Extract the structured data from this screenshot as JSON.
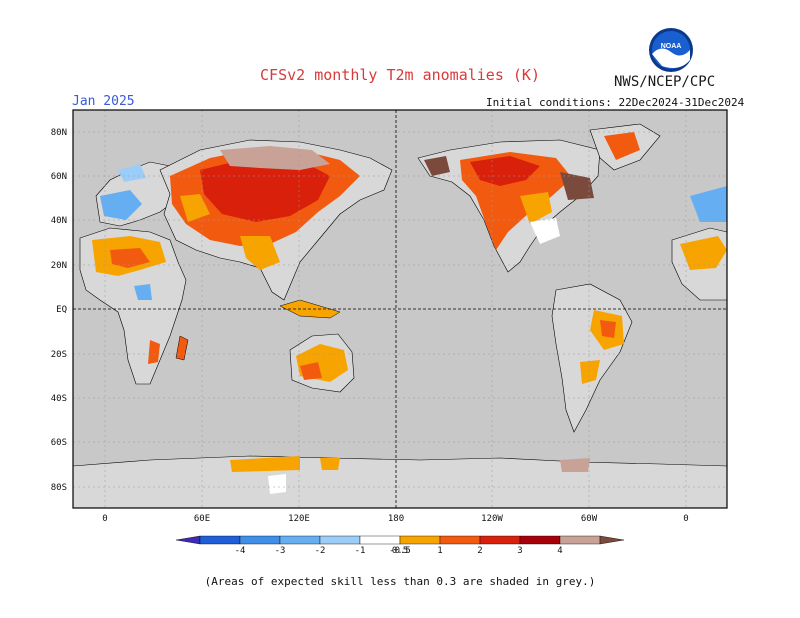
{
  "title": "CFSv2 monthly T2m anomalies (K)",
  "agency": "NWS/NCEP/CPC",
  "logo_text": "NOAA",
  "target_month": "Jan 2025",
  "initial_conditions": "Initial conditions: 22Dec2024-31Dec2024",
  "footnote": "(Areas of expected skill less than 0.3 are shaded in grey.)",
  "lat_ticks": [
    "80N",
    "60N",
    "40N",
    "20N",
    "EQ",
    "20S",
    "40S",
    "60S",
    "80S"
  ],
  "lon_ticks": [
    "0",
    "60E",
    "120E",
    "180",
    "120W",
    "60W",
    "0"
  ],
  "colorbar": {
    "labels": [
      "-4",
      "-3",
      "-2",
      "-1",
      "-0.5",
      "0.5",
      "1",
      "2",
      "3",
      "4"
    ],
    "colors": [
      "#3c2ab8",
      "#1e5ed8",
      "#3f8ee8",
      "#66aef2",
      "#9ccdf8",
      "#ffffff",
      "#f7a400",
      "#f25a10",
      "#d8200a",
      "#a8000a",
      "#c8a296",
      "#7a4a3c"
    ]
  },
  "colors": {
    "ocean": "#c8c8c8",
    "low_skill_land": "#c8c8c8",
    "title_red": "#d83a3a",
    "month_blue": "#3a5bd6"
  }
}
